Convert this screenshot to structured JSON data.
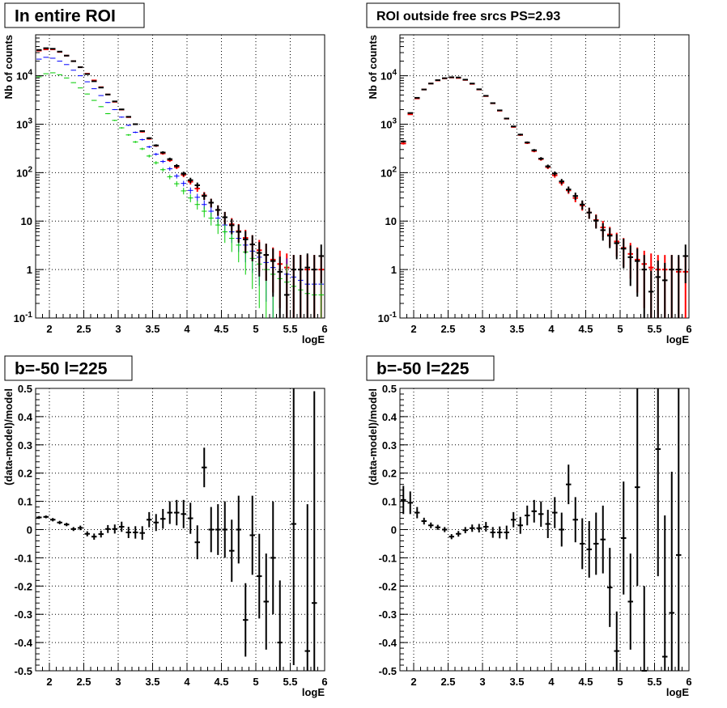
{
  "colors": {
    "data": "#000000",
    "model": "#ff0000",
    "blue": "#0000ff",
    "green": "#00cc00"
  },
  "chart_data": [
    {
      "type": "scatter",
      "title": "In entire ROI",
      "xlabel": "logE",
      "ylabel": "Nb of counts",
      "xlim": [
        1.8,
        6.0
      ],
      "ylim": [
        0.1,
        70000
      ],
      "yscale": "log",
      "grid": true,
      "xticks": [
        "2",
        "2.5",
        "3",
        "3.5",
        "4",
        "4.5",
        "5",
        "5.5",
        "6"
      ],
      "yticks": [
        "10^-1",
        "1",
        "10",
        "10^2",
        "10^3",
        "10^4"
      ],
      "bin_width": 0.1,
      "x": [
        1.85,
        1.95,
        2.05,
        2.15,
        2.25,
        2.35,
        2.45,
        2.55,
        2.65,
        2.75,
        2.85,
        2.95,
        3.05,
        3.15,
        3.25,
        3.35,
        3.45,
        3.55,
        3.65,
        3.75,
        3.85,
        3.95,
        4.05,
        4.15,
        4.25,
        4.35,
        4.45,
        4.55,
        4.65,
        4.75,
        4.85,
        4.95,
        5.05,
        5.15,
        5.25,
        5.35,
        5.45,
        5.55,
        5.65,
        5.75,
        5.85,
        5.95
      ],
      "series": [
        {
          "color_key": "model",
          "values": [
            33000,
            35000,
            35000,
            31000,
            26000,
            20000,
            15000,
            11000,
            8000,
            5800,
            4100,
            2900,
            2000,
            1400,
            1000,
            700,
            500,
            360,
            250,
            180,
            130,
            90,
            65,
            47,
            34,
            24,
            17,
            12,
            8.6,
            6.2,
            4.5,
            3.3,
            2.5,
            2.0,
            1.6,
            1.3,
            1.1,
            1.0,
            1.0,
            1.0,
            1.0,
            1.0
          ]
        },
        {
          "color_key": "blue",
          "values": [
            22000,
            24000,
            23000,
            20000,
            17000,
            13000,
            10000,
            7500,
            5400,
            3900,
            2800,
            2000,
            1400,
            950,
            680,
            480,
            340,
            240,
            170,
            120,
            85,
            60,
            43,
            31,
            22,
            16,
            11.5,
            8.3,
            6.0,
            4.4,
            3.2,
            2.4,
            1.8,
            1.4,
            1.1,
            0.9,
            0.8,
            0.7,
            0.6,
            0.5,
            0.5,
            0.5
          ]
        },
        {
          "color_key": "green",
          "values": [
            9500,
            11000,
            11500,
            10500,
            9000,
            7200,
            5600,
            4200,
            3100,
            2300,
            1650,
            1200,
            840,
            600,
            430,
            310,
            220,
            160,
            115,
            82,
            59,
            42,
            30,
            22,
            16,
            11.5,
            8.3,
            6.0,
            4.4,
            3.2,
            2.3,
            1.7,
            1.3,
            1.0,
            0.8,
            0.65,
            0.55,
            0.45,
            0.38,
            0.32,
            0.3,
            0.3
          ]
        },
        {
          "color_key": "data",
          "values": [
            34000,
            37000,
            36000,
            31500,
            26000,
            20000,
            15000,
            10800,
            7700,
            5700,
            4100,
            2950,
            2020,
            1420,
            1000,
            720,
            515,
            365,
            260,
            190,
            138,
            95,
            70,
            55,
            33,
            24,
            17,
            12,
            8.2,
            6.0,
            4.2,
            3.3,
            2.2,
            2.0,
            1.5,
            0.9,
            0.3,
            1.0,
            1.0,
            1.1,
            1.0,
            1.9
          ]
        }
      ]
    },
    {
      "type": "scatter",
      "title": "ROI outside free srcs PS=2.93",
      "xlabel": "logE",
      "ylabel": "Nb of counts",
      "xlim": [
        1.8,
        6.0
      ],
      "ylim": [
        0.1,
        70000
      ],
      "yscale": "log",
      "grid": true,
      "xticks": [
        "2",
        "2.5",
        "3",
        "3.5",
        "4",
        "4.5",
        "5",
        "5.5",
        "6"
      ],
      "yticks": [
        "10^-1",
        "1",
        "10",
        "10^2",
        "10^3",
        "10^4"
      ],
      "bin_width": 0.1,
      "x": [
        1.85,
        1.95,
        2.05,
        2.15,
        2.25,
        2.35,
        2.45,
        2.55,
        2.65,
        2.75,
        2.85,
        2.95,
        3.05,
        3.15,
        3.25,
        3.35,
        3.45,
        3.55,
        3.65,
        3.75,
        3.85,
        3.95,
        4.05,
        4.15,
        4.25,
        4.35,
        4.45,
        4.55,
        4.65,
        4.75,
        4.85,
        4.95,
        5.05,
        5.15,
        5.25,
        5.35,
        5.45,
        5.55,
        5.65,
        5.75,
        5.85,
        5.95
      ],
      "series": [
        {
          "color_key": "model",
          "values": [
            400,
            1600,
            3400,
            5200,
            6900,
            8000,
            8800,
            9200,
            9000,
            8200,
            6800,
            5200,
            3800,
            2700,
            1900,
            1300,
            880,
            600,
            410,
            280,
            190,
            130,
            88,
            62,
            43,
            30,
            21,
            15,
            10.5,
            7.4,
            5.3,
            3.8,
            2.8,
            2.1,
            1.6,
            1.3,
            1.1,
            1.0,
            1.0,
            1.0,
            0.9,
            0.9
          ]
        },
        {
          "color_key": "data",
          "values": [
            440,
            1700,
            3500,
            5200,
            6900,
            8100,
            8900,
            9300,
            9200,
            8300,
            6900,
            5250,
            3850,
            2720,
            1930,
            1310,
            900,
            610,
            420,
            290,
            195,
            135,
            96,
            66,
            45,
            33,
            22,
            15,
            10.2,
            6.5,
            5.0,
            3.5,
            2.7,
            1.8,
            1.5,
            1.0,
            0.35,
            0.7,
            0.6,
            1.0,
            1.0,
            1.9
          ]
        }
      ]
    },
    {
      "type": "scatter",
      "title": "b=-50 l=225",
      "xlabel": "logE",
      "ylabel": "(data-model)/model",
      "xlim": [
        1.8,
        6.0
      ],
      "ylim": [
        -0.5,
        0.5
      ],
      "grid": true,
      "xticks": [
        "2",
        "2.5",
        "3",
        "3.5",
        "4",
        "4.5",
        "5",
        "5.5",
        "6"
      ],
      "yticks": [
        "-0.5",
        "-0.4",
        "-0.3",
        "-0.2",
        "-0.1",
        "0",
        "0.1",
        "0.2",
        "0.3",
        "0.4",
        "0.5"
      ],
      "bin_width": 0.1,
      "x": [
        1.85,
        1.95,
        2.05,
        2.15,
        2.25,
        2.35,
        2.45,
        2.55,
        2.65,
        2.75,
        2.85,
        2.95,
        3.05,
        3.15,
        3.25,
        3.35,
        3.45,
        3.55,
        3.65,
        3.75,
        3.85,
        3.95,
        4.05,
        4.15,
        4.25,
        4.35,
        4.45,
        4.55,
        4.65,
        4.75,
        4.85,
        4.95,
        5.05,
        5.15,
        5.25,
        5.35,
        5.45,
        5.55,
        5.65,
        5.75,
        5.85
      ],
      "values": [
        0.043,
        0.045,
        0.035,
        0.025,
        0.018,
        0.002,
        0.006,
        -0.015,
        -0.025,
        -0.016,
        0.002,
        0.002,
        0.01,
        -0.01,
        -0.01,
        -0.012,
        0.035,
        0.025,
        0.038,
        0.06,
        0.06,
        0.055,
        0.04,
        -0.045,
        0.22,
        0.0,
        0.0,
        0.0,
        -0.075,
        0.0,
        -0.32,
        -0.02,
        -0.165,
        -0.255,
        -0.1,
        -0.4,
        null,
        0.02,
        null,
        -0.43,
        -0.26
      ],
      "errors": [
        0.005,
        0.005,
        0.006,
        0.006,
        0.006,
        0.007,
        0.008,
        0.009,
        0.011,
        0.012,
        0.014,
        0.016,
        0.018,
        0.02,
        0.022,
        0.024,
        0.027,
        0.03,
        0.035,
        0.04,
        0.045,
        0.05,
        0.055,
        0.06,
        0.07,
        0.08,
        0.09,
        0.1,
        0.11,
        0.12,
        0.13,
        0.14,
        0.15,
        0.17,
        0.2,
        0.22,
        0.0,
        0.5,
        0.0,
        0.52,
        0.75
      ]
    },
    {
      "type": "scatter",
      "title": "b=-50 l=225",
      "xlabel": "logE",
      "ylabel": "(data-model)/model",
      "xlim": [
        1.8,
        6.0
      ],
      "ylim": [
        -0.5,
        0.5
      ],
      "grid": true,
      "xticks": [
        "2",
        "2.5",
        "3",
        "3.5",
        "4",
        "4.5",
        "5",
        "5.5",
        "6"
      ],
      "yticks": [
        "-0.5",
        "-0.4",
        "-0.3",
        "-0.2",
        "-0.1",
        "0",
        "0.1",
        "0.2",
        "0.3",
        "0.4",
        "0.5"
      ],
      "bin_width": 0.1,
      "x": [
        1.85,
        1.95,
        2.05,
        2.15,
        2.25,
        2.35,
        2.45,
        2.55,
        2.65,
        2.75,
        2.85,
        2.95,
        3.05,
        3.15,
        3.25,
        3.35,
        3.45,
        3.55,
        3.65,
        3.75,
        3.85,
        3.95,
        4.05,
        4.15,
        4.25,
        4.35,
        4.45,
        4.55,
        4.65,
        4.75,
        4.85,
        4.95,
        5.05,
        5.15,
        5.25,
        5.35,
        5.45,
        5.55,
        5.65,
        5.75,
        5.85
      ],
      "values": [
        0.105,
        0.095,
        0.06,
        0.03,
        0.015,
        0.008,
        0.0,
        -0.025,
        -0.015,
        -0.002,
        0.005,
        0.005,
        0.01,
        -0.01,
        -0.01,
        -0.01,
        0.035,
        0.015,
        0.05,
        0.065,
        0.055,
        0.02,
        0.06,
        0.0,
        0.16,
        0.035,
        -0.05,
        -0.07,
        -0.05,
        -0.035,
        -0.205,
        -0.43,
        -0.03,
        -0.255,
        0.15,
        -0.5,
        null,
        0.285,
        -0.45,
        -0.295,
        -0.09
      ],
      "errors": [
        0.05,
        0.04,
        0.02,
        0.012,
        0.01,
        0.009,
        0.009,
        0.009,
        0.01,
        0.011,
        0.013,
        0.015,
        0.017,
        0.019,
        0.021,
        0.024,
        0.027,
        0.03,
        0.035,
        0.04,
        0.045,
        0.05,
        0.055,
        0.06,
        0.07,
        0.08,
        0.09,
        0.1,
        0.11,
        0.12,
        0.14,
        0.14,
        0.2,
        0.17,
        0.35,
        0.3,
        0.0,
        0.45,
        0.5,
        0.5,
        0.6
      ]
    }
  ]
}
